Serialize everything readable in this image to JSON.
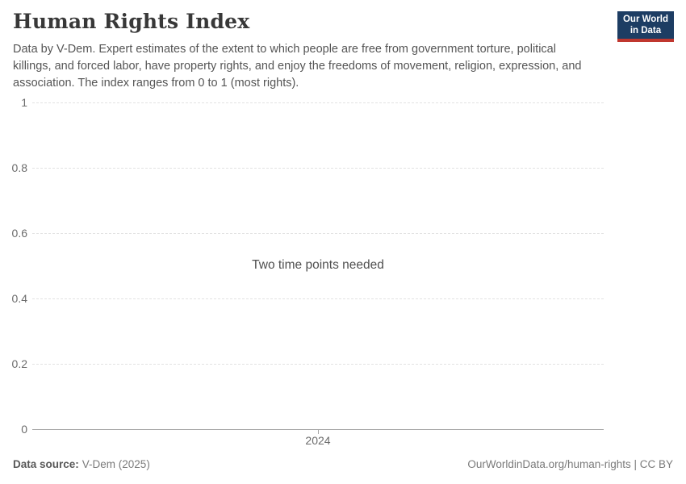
{
  "header": {
    "title": "Human Rights Index",
    "subtitle": "Data by V-Dem. Expert estimates of the extent to which people are free from government torture, political killings, and forced labor, have property rights, and enjoy the freedoms of movement, religion, expression, and association. The index ranges from 0 to 1 (most rights)."
  },
  "logo": {
    "line1": "Our World",
    "line2": "in Data",
    "bg_color": "#1d3d63",
    "accent_color": "#c0372f"
  },
  "chart_data": {
    "type": "line",
    "title": "Human Rights Index",
    "series": [],
    "status_message": "Two time points needed",
    "x_ticks": [
      "2024"
    ],
    "y_ticks": [
      "0",
      "0.2",
      "0.4",
      "0.6",
      "0.8",
      "1"
    ],
    "ylim": [
      0,
      1
    ],
    "grid": "horizontal-dashed",
    "legend": "none"
  },
  "footer": {
    "source_label": "Data source:",
    "source_value": "V-Dem (2025)",
    "credit": "OurWorldinData.org/human-rights | CC BY"
  }
}
